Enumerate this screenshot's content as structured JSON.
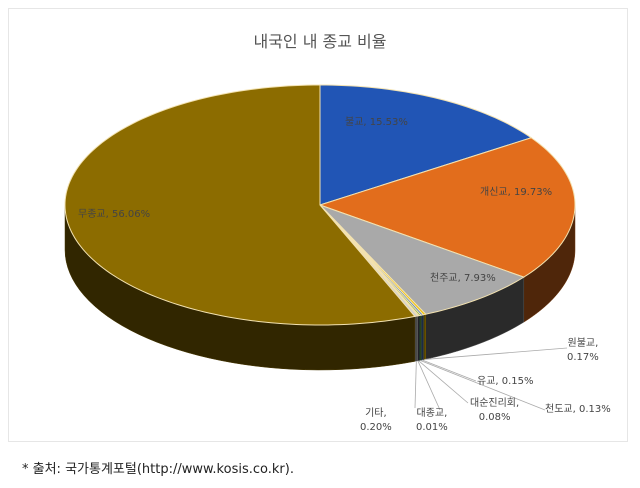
{
  "chart_data": {
    "type": "pie",
    "title": "내국인 내 종교 비율",
    "slices": [
      {
        "label": "불교",
        "value": 15.53,
        "color": "#2155b5"
      },
      {
        "label": "개신교",
        "value": 19.73,
        "color": "#e26d1c"
      },
      {
        "label": "천주교",
        "value": 7.93,
        "color": "#a9a9a9"
      },
      {
        "label": "원불교",
        "value": 0.17,
        "color": "#f0c000"
      },
      {
        "label": "유교",
        "value": 0.15,
        "color": "#4a78c8"
      },
      {
        "label": "천도교",
        "value": 0.13,
        "color": "#70ad47"
      },
      {
        "label": "대순진리회",
        "value": 0.08,
        "color": "#264478"
      },
      {
        "label": "대종교",
        "value": 0.01,
        "color": "#9e480e"
      },
      {
        "label": "기타",
        "value": 0.2,
        "color": "#d0d0d0"
      },
      {
        "label": "무종교",
        "value": 56.06,
        "color": "#8c6c00"
      }
    ],
    "data_labels": [
      "불교, 15.53%",
      "개신교, 19.73%",
      "천주교, 7.93%",
      "원불교,",
      "0.17%",
      "유교, 0.15%",
      "천도교, 0.13%",
      "대순진리회,",
      "0.08%",
      "대종교,",
      "0.01%",
      "기타,",
      "0.20%",
      "무종교, 56.06%"
    ]
  },
  "source": "* 출처: 국가통계포털(http://www.kosis.co.kr)."
}
